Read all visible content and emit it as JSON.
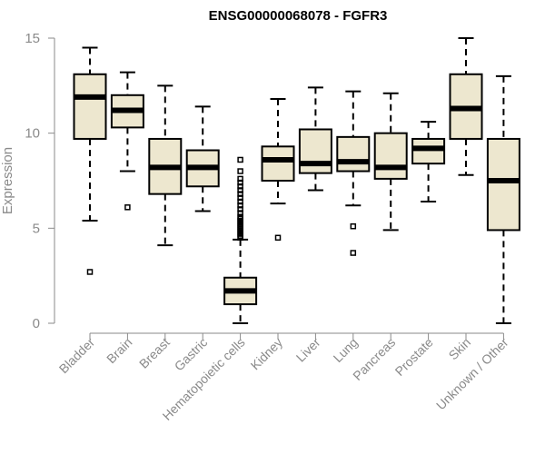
{
  "chart_data": {
    "type": "boxplot",
    "title": "ENSG00000068078 - FGFR3",
    "xlabel": "",
    "ylabel": "Expression",
    "ylim": [
      0,
      15
    ],
    "yticks": [
      0,
      5,
      10,
      15
    ],
    "categories": [
      "Bladder",
      "Brain",
      "Breast",
      "Gastric",
      "Hematopoietic cells",
      "Kidney",
      "Liver",
      "Lung",
      "Pancreas",
      "Prostate",
      "Skin",
      "Unknown / Other"
    ],
    "boxes": [
      {
        "name": "Bladder",
        "whisker_low": 5.4,
        "q1": 9.7,
        "median": 11.9,
        "q3": 13.1,
        "whisker_high": 14.5,
        "outliers": [
          2.7
        ]
      },
      {
        "name": "Brain",
        "whisker_low": 8.0,
        "q1": 10.3,
        "median": 11.2,
        "q3": 12.0,
        "whisker_high": 13.2,
        "outliers": [
          6.1
        ]
      },
      {
        "name": "Breast",
        "whisker_low": 4.1,
        "q1": 6.8,
        "median": 8.2,
        "q3": 9.7,
        "whisker_high": 12.5,
        "outliers": []
      },
      {
        "name": "Gastric",
        "whisker_low": 5.9,
        "q1": 7.2,
        "median": 8.2,
        "q3": 9.1,
        "whisker_high": 11.4,
        "outliers": []
      },
      {
        "name": "Hematopoietic cells",
        "whisker_low": 0.0,
        "q1": 1.0,
        "median": 1.7,
        "q3": 2.4,
        "whisker_high": 4.4,
        "outliers": [
          4.5,
          4.6,
          4.7,
          4.8,
          4.9,
          5.0,
          5.1,
          5.2,
          5.3,
          5.4,
          5.5,
          5.6,
          5.8,
          6.0,
          6.2,
          6.4,
          6.6,
          6.8,
          7.0,
          7.2,
          7.4,
          7.6,
          8.0,
          8.6
        ]
      },
      {
        "name": "Kidney",
        "whisker_low": 6.3,
        "q1": 7.5,
        "median": 8.6,
        "q3": 9.3,
        "whisker_high": 11.8,
        "outliers": [
          4.5
        ]
      },
      {
        "name": "Liver",
        "whisker_low": 7.0,
        "q1": 7.9,
        "median": 8.4,
        "q3": 10.2,
        "whisker_high": 12.4,
        "outliers": []
      },
      {
        "name": "Lung",
        "whisker_low": 6.2,
        "q1": 8.0,
        "median": 8.5,
        "q3": 9.8,
        "whisker_high": 12.2,
        "outliers": [
          5.1,
          3.7
        ]
      },
      {
        "name": "Pancreas",
        "whisker_low": 4.9,
        "q1": 7.6,
        "median": 8.2,
        "q3": 10.0,
        "whisker_high": 12.1,
        "outliers": []
      },
      {
        "name": "Prostate",
        "whisker_low": 6.4,
        "q1": 8.4,
        "median": 9.2,
        "q3": 9.7,
        "whisker_high": 10.6,
        "outliers": []
      },
      {
        "name": "Skin",
        "whisker_low": 7.8,
        "q1": 9.7,
        "median": 11.3,
        "q3": 13.1,
        "whisker_high": 15.0,
        "outliers": []
      },
      {
        "name": "Unknown / Other",
        "whisker_low": 0.0,
        "q1": 4.9,
        "median": 7.5,
        "q3": 9.7,
        "whisker_high": 13.0,
        "outliers": []
      }
    ],
    "box_fill": "#ede7cf",
    "axis_color": "#8a8a8a",
    "grid": false,
    "legend": "none"
  }
}
